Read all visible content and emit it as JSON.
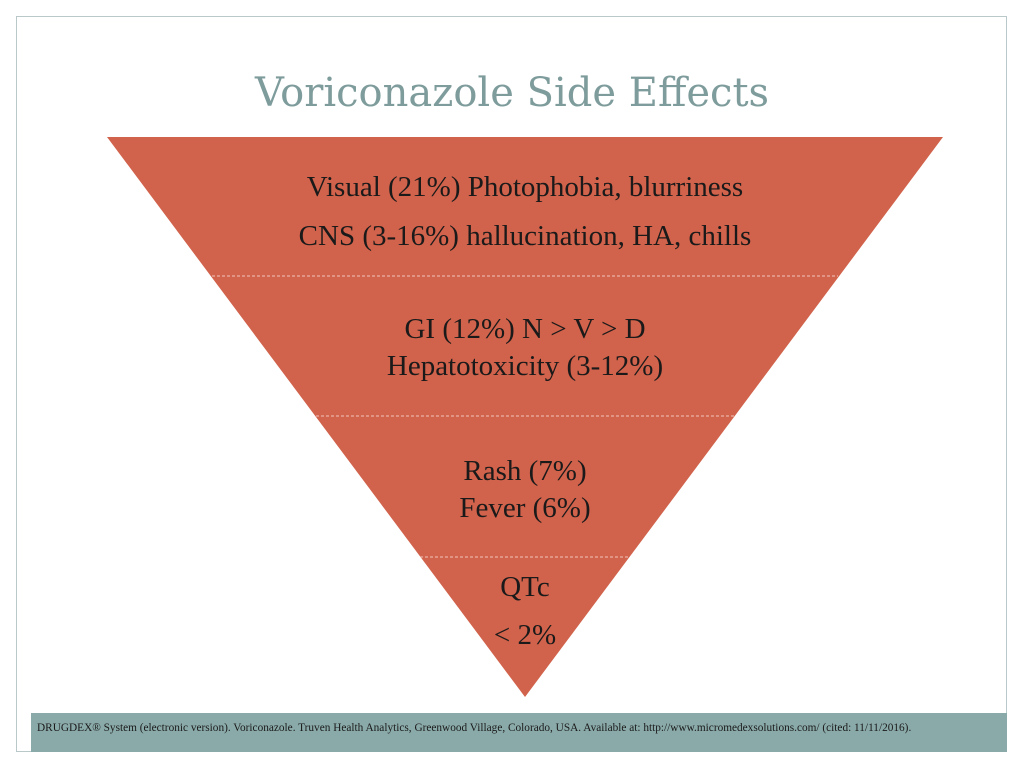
{
  "slide": {
    "title": "Voriconazole Side Effects"
  },
  "funnel": {
    "fill_color": "#d1624b",
    "divider_color": "#f1c7bb",
    "tiers": [
      {
        "lines": [
          "Visual (21%) Photophobia, blurriness",
          "CNS (3-16%) hallucination, HA, chills"
        ]
      },
      {
        "lines": [
          "GI (12%) N > V > D",
          "Hepatotoxicity (3-12%)"
        ]
      },
      {
        "lines": [
          "Rash (7%)",
          "Fever (6%)"
        ]
      },
      {
        "lines": [
          "QTc",
          "< 2%"
        ]
      }
    ]
  },
  "footer": {
    "citation": "DRUGDEX® System (electronic version).  Voriconazole. Truven Health Analytics, Greenwood Village, Colorado, USA. Available at: http://www.micromedexsolutions.com/ (cited: 11/11/2016).",
    "band_color": "#8aaaa9"
  }
}
